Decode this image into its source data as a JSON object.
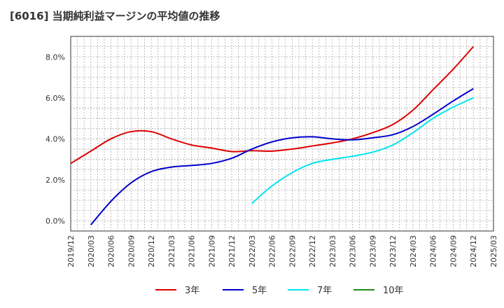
{
  "title": "[6016]  当期純利益マージンの平均値の推移",
  "chart_data": {
    "type": "line",
    "title": "[6016]  当期純利益マージンの平均値の推移",
    "x_ticks": [
      "2019/12",
      "2020/03",
      "2020/06",
      "2020/09",
      "2020/12",
      "2021/03",
      "2021/06",
      "2021/09",
      "2021/12",
      "2022/03",
      "2022/06",
      "2022/09",
      "2022/12",
      "2023/03",
      "2023/06",
      "2023/09",
      "2023/12",
      "2024/03",
      "2024/06",
      "2024/09",
      "2024/12",
      "2025/03"
    ],
    "y_ticks": [
      "0.0%",
      "2.0%",
      "4.0%",
      "6.0%",
      "8.0%"
    ],
    "ylim": [
      -0.5,
      9.0
    ],
    "grid": true,
    "legend_position": "bottom",
    "series": [
      {
        "name": "3年",
        "color": "#dd0000",
        "values": [
          2.8,
          3.4,
          4.0,
          4.35,
          4.35,
          4.0,
          3.7,
          3.55,
          3.38,
          3.42,
          3.4,
          3.5,
          3.65,
          3.8,
          4.0,
          4.3,
          4.7,
          5.4,
          6.4,
          7.4,
          8.5,
          null
        ]
      },
      {
        "name": "5年",
        "color": "#0000cc",
        "values": [
          null,
          -0.2,
          0.95,
          1.85,
          2.4,
          2.62,
          2.7,
          2.8,
          3.05,
          3.5,
          3.85,
          4.05,
          4.1,
          4.0,
          3.95,
          4.05,
          4.2,
          4.6,
          5.2,
          5.85,
          6.45,
          null
        ]
      },
      {
        "name": "7年",
        "color": "#00e5ee",
        "values": [
          null,
          null,
          null,
          null,
          null,
          null,
          null,
          null,
          null,
          0.85,
          1.7,
          2.35,
          2.8,
          3.0,
          3.15,
          3.35,
          3.7,
          4.3,
          5.0,
          5.55,
          6.0,
          null
        ]
      },
      {
        "name": "10年",
        "color": "#228b22",
        "values": [
          null,
          null,
          null,
          null,
          null,
          null,
          null,
          null,
          null,
          null,
          null,
          null,
          null,
          null,
          null,
          null,
          null,
          null,
          null,
          null,
          null,
          null
        ]
      }
    ]
  }
}
